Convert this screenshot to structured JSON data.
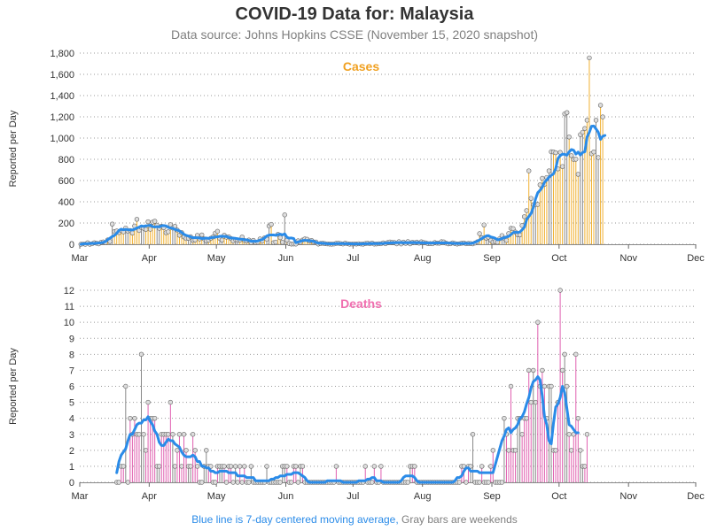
{
  "title": "COVID-19 Data for: Malaysia",
  "subtitle": "Data source: Johns Hopkins CSSE (November 15, 2020 snapshot)",
  "footer": {
    "blue_text": "Blue line is 7-day centered moving average,",
    "gray_text": "Gray bars are weekends"
  },
  "colors": {
    "cases_bar": "#f0b030",
    "deaths_bar": "#e060b0",
    "weekend_bar": "#888888",
    "average_line": "#2a8be8",
    "cases_title": "#f0a020",
    "deaths_title": "#f070b0"
  },
  "chart_data": [
    {
      "type": "bar",
      "title": "Cases",
      "ylabel": "Reported per Day",
      "xlim": [
        "2020-03-01",
        "2020-12-01"
      ],
      "ylim": [
        0,
        1800
      ],
      "yticks": [
        0,
        200,
        400,
        600,
        800,
        1000,
        1200,
        1400,
        1600,
        1800
      ],
      "ytick_labels": [
        "0",
        "200",
        "400",
        "600",
        "800",
        "1,000",
        "1,200",
        "1,400",
        "1,600",
        "1,800"
      ],
      "xtick_labels": [
        "Mar",
        "Apr",
        "May",
        "Jun",
        "Jul",
        "Aug",
        "Sep",
        "Oct",
        "Nov",
        "Dec"
      ],
      "grid": "horizontal-dotted",
      "series": [
        {
          "start_date": "2020-03-01",
          "values": [
            0,
            4,
            0,
            14,
            0,
            5,
            14,
            10,
            4,
            18,
            22,
            15,
            41,
            26,
            190,
            120,
            125,
            110,
            130,
            117,
            153,
            123,
            130,
            106,
            172,
            235,
            130,
            159,
            150,
            140,
            212,
            142,
            208,
            217,
            179,
            150,
            170,
            156,
            109,
            118,
            184,
            153,
            170,
            134,
            85,
            110,
            69,
            54,
            57,
            71,
            36,
            40,
            84,
            50,
            88,
            51,
            31,
            38,
            57,
            69,
            105,
            122,
            55,
            40,
            85,
            67,
            70,
            55,
            30,
            45,
            37,
            39,
            68,
            36,
            31,
            40,
            16,
            37,
            17,
            20,
            50,
            30,
            60,
            48,
            172,
            187,
            15,
            20,
            93,
            62,
            19,
            277,
            38,
            7,
            2,
            3,
            2,
            33,
            19,
            40,
            50,
            47,
            31,
            36,
            21,
            21,
            2,
            8,
            10,
            6,
            4,
            2,
            1,
            3,
            9,
            10,
            6,
            3,
            10,
            5,
            1,
            3,
            4,
            2,
            5,
            3,
            1,
            7,
            10,
            5,
            11,
            2,
            3,
            5,
            5,
            13,
            5,
            16,
            21,
            17,
            16,
            4,
            24,
            3,
            20,
            9,
            25,
            4,
            18,
            14,
            20,
            11,
            23,
            16,
            13,
            6,
            7,
            5,
            16,
            11,
            10,
            24,
            22,
            11,
            4,
            5,
            13,
            7,
            2,
            5,
            10,
            12,
            5,
            8,
            7,
            4,
            12,
            23,
            100,
            62,
            182,
            57,
            65,
            37,
            21,
            25,
            19,
            53,
            82,
            57,
            36,
            101,
            150,
            147,
            115,
            89,
            88,
            177,
            260,
            317,
            691,
            432,
            373,
            374,
            375,
            560,
            621,
            565,
            629,
            691,
            871,
            869,
            862,
            710,
            865,
            732,
            1228,
            1240,
            1010,
            835,
            799,
            801,
            659,
            1032,
            1054,
            1090,
            1168,
            1755,
            852,
            869,
            1168,
            817,
            1309,
            1199
          ]
        },
        {
          "name": "7-day centered moving average",
          "start_date": "2020-03-01",
          "values": [
            0,
            4,
            5,
            5,
            7,
            8,
            8,
            10,
            12,
            14,
            18,
            26,
            44,
            58,
            73,
            83,
            104,
            130,
            142,
            136,
            140,
            137,
            134,
            135,
            141,
            154,
            161,
            173,
            168,
            174,
            175,
            180,
            167,
            162,
            166,
            164,
            174,
            176,
            173,
            160,
            152,
            151,
            139,
            134,
            126,
            111,
            94,
            84,
            78,
            70,
            62,
            63,
            61,
            59,
            54,
            55,
            59,
            55,
            61,
            65,
            67,
            71,
            75,
            76,
            74,
            73,
            65,
            58,
            58,
            55,
            52,
            48,
            47,
            43,
            42,
            36,
            28,
            29,
            28,
            31,
            40,
            44,
            60,
            78,
            86,
            87,
            88,
            84,
            91,
            95,
            88,
            98,
            66,
            57,
            59,
            54,
            15,
            22,
            28,
            35,
            38,
            35,
            33,
            31,
            27,
            19,
            10,
            10,
            9,
            7,
            5,
            4,
            4,
            5,
            6,
            6,
            6,
            6,
            5,
            5,
            4,
            4,
            3,
            3,
            3,
            3,
            4,
            5,
            5,
            6,
            7,
            6,
            6,
            6,
            7,
            8,
            10,
            12,
            13,
            14,
            15,
            15,
            16,
            16,
            15,
            15,
            16,
            15,
            17,
            15,
            16,
            15,
            14,
            14,
            12,
            11,
            11,
            11,
            12,
            12,
            12,
            13,
            14,
            13,
            11,
            10,
            9,
            8,
            7,
            7,
            7,
            8,
            8,
            7,
            8,
            10,
            20,
            28,
            41,
            53,
            68,
            79,
            81,
            69,
            64,
            57,
            42,
            46,
            54,
            62,
            69,
            74,
            91,
            110,
            114,
            111,
            115,
            136,
            160,
            231,
            262,
            290,
            348,
            427,
            486,
            508,
            537,
            585,
            605,
            632,
            649,
            663,
            714,
            807,
            835,
            848,
            847,
            839,
            870,
            892,
            885,
            849,
            868,
            840,
            864,
            871,
            1010,
            1054,
            1112,
            1114,
            1086,
            1055,
            988,
            1017,
            1025
          ]
        }
      ]
    },
    {
      "type": "bar",
      "title": "Deaths",
      "ylabel": "Reported per Day",
      "xlim": [
        "2020-03-01",
        "2020-12-01"
      ],
      "ylim": [
        0,
        12
      ],
      "yticks": [
        0,
        1,
        2,
        3,
        4,
        5,
        6,
        7,
        8,
        9,
        10,
        11,
        12
      ],
      "ytick_labels": [
        "0",
        "1",
        "2",
        "3",
        "4",
        "5",
        "6",
        "7",
        "8",
        "9",
        "10",
        "11",
        "12"
      ],
      "xtick_labels": [
        "Mar",
        "Apr",
        "May",
        "Jun",
        "Jul",
        "Aug",
        "Sep",
        "Oct",
        "Nov",
        "Dec"
      ],
      "grid": "horizontal-dotted",
      "series": [
        {
          "start_date": "2020-03-17",
          "values": [
            0,
            0,
            1,
            1,
            6,
            0,
            4,
            3,
            4,
            3,
            3,
            8,
            3,
            2,
            5,
            4,
            4,
            4,
            1,
            1,
            3,
            3,
            3,
            3,
            5,
            3,
            1,
            2,
            3,
            1,
            3,
            2,
            1,
            1,
            3,
            2,
            1,
            0,
            0,
            1,
            2,
            1,
            1,
            0,
            0,
            1,
            1,
            1,
            1,
            0,
            1,
            1,
            0,
            1,
            0,
            1,
            0,
            1,
            0,
            0,
            1,
            0,
            0,
            0,
            0,
            0,
            0,
            1,
            0,
            0,
            0,
            0,
            0,
            0,
            1,
            1,
            1,
            0,
            0,
            1,
            1,
            0,
            1,
            1,
            0,
            0,
            0,
            0,
            0,
            0,
            0,
            0,
            0,
            0,
            0,
            0,
            0,
            0,
            1,
            0,
            0,
            0,
            0,
            0,
            0,
            0,
            0,
            0,
            0,
            0,
            0,
            1,
            0,
            0,
            0,
            1,
            0,
            0,
            1,
            0,
            0,
            0,
            0,
            0,
            0,
            0,
            0,
            0,
            0,
            0,
            0,
            1,
            1,
            1,
            0,
            0,
            0,
            0,
            0,
            0,
            0,
            0,
            0,
            0,
            0,
            0,
            0,
            0,
            0,
            0,
            0,
            0,
            0,
            0,
            1,
            1,
            0,
            1,
            1,
            3,
            0,
            0,
            0,
            1,
            0,
            0,
            0,
            1,
            2,
            0,
            0,
            0,
            0,
            4,
            3,
            2,
            6,
            2,
            2,
            4,
            4,
            3,
            4,
            4,
            7,
            5,
            7,
            5,
            10,
            6,
            7,
            6,
            4,
            6,
            6,
            2,
            2,
            5,
            12,
            7,
            8,
            6,
            3,
            2,
            3,
            8,
            4,
            2,
            1,
            1,
            3
          ]
        },
        {
          "name": "7-day centered moving average",
          "start_date": "2020-03-17",
          "values": [
            0.6,
            1.3,
            1.7,
            1.9,
            2.1,
            2.6,
            3.0,
            3.0,
            3.3,
            3.6,
            3.7,
            3.7,
            3.9,
            3.9,
            4.1,
            3.8,
            3.6,
            3.2,
            3.0,
            2.5,
            2.3,
            2.3,
            2.5,
            2.7,
            2.6,
            2.6,
            2.4,
            2.3,
            2.2,
            1.9,
            1.7,
            1.6,
            1.6,
            1.6,
            1.7,
            1.6,
            1.3,
            1.3,
            1.0,
            1.0,
            0.9,
            0.9,
            0.7,
            0.7,
            0.6,
            0.6,
            0.7,
            0.7,
            0.7,
            0.7,
            0.6,
            0.6,
            0.6,
            0.6,
            0.4,
            0.4,
            0.4,
            0.4,
            0.3,
            0.3,
            0.3,
            0.3,
            0.1,
            0.1,
            0.1,
            0.1,
            0.1,
            0.1,
            0.1,
            0.2,
            0.2,
            0.3,
            0.3,
            0.4,
            0.4,
            0.4,
            0.5,
            0.5,
            0.5,
            0.6,
            0.6,
            0.6,
            0.5,
            0.4,
            0.3,
            0.1,
            0.0,
            0.0,
            0.0,
            0.0,
            0.0,
            0.0,
            0.0,
            0.0,
            0.1,
            0.1,
            0.1,
            0.1,
            0.1,
            0.1,
            0.1,
            0.0,
            0.0,
            0.0,
            0.0,
            0.0,
            0.0,
            0.0,
            0.1,
            0.1,
            0.1,
            0.1,
            0.2,
            0.2,
            0.3,
            0.3,
            0.1,
            0.1,
            0.1,
            0.0,
            0.0,
            0.0,
            0.0,
            0.0,
            0.0,
            0.0,
            0.0,
            0.1,
            0.3,
            0.4,
            0.4,
            0.4,
            0.4,
            0.3,
            0.1,
            0.0,
            0.0,
            0.0,
            0.0,
            0.0,
            0.0,
            0.0,
            0.0,
            0.0,
            0.0,
            0.0,
            0.0,
            0.0,
            0.0,
            0.0,
            0.0,
            0.1,
            0.3,
            0.3,
            0.4,
            0.7,
            0.9,
            0.9,
            0.7,
            0.7,
            0.7,
            0.7,
            0.6,
            0.6,
            0.6,
            0.6,
            0.6,
            0.6,
            0.6,
            1.1,
            1.6,
            2.1,
            2.6,
            2.9,
            3.3,
            3.4,
            3.1,
            3.3,
            3.4,
            3.6,
            4.0,
            4.1,
            4.4,
            4.9,
            5.3,
            5.9,
            6.3,
            6.4,
            6.6,
            6.4,
            5.4,
            4.1,
            3.6,
            2.6,
            2.4,
            3.7,
            4.7,
            4.9,
            5.3,
            6.0,
            5.6,
            4.6,
            3.6,
            3.5,
            3.3,
            3.1,
            3.1
          ]
        }
      ]
    }
  ]
}
